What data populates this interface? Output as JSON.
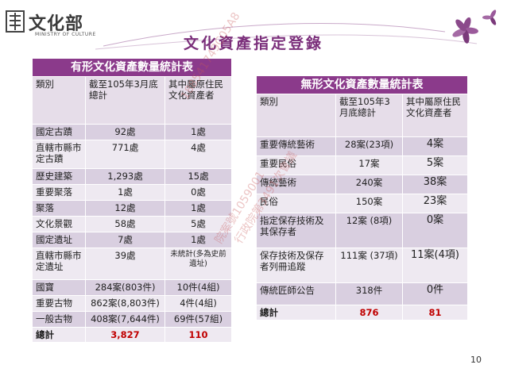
{
  "header": {
    "logo_text": "文化部",
    "logo_sub": "MINISTRY OF CULTURE",
    "page_title": "文化資產指定登錄"
  },
  "tangible": {
    "title": "有形文化資產數量統計表",
    "headers": [
      "類別",
      "截至105年3月底總計",
      "其中屬原住民文化資產者"
    ],
    "rows": [
      {
        "cat": "國定古蹟",
        "total": "92處",
        "indig": "1處"
      },
      {
        "cat": "直轄市縣市定古蹟",
        "total": "771處",
        "indig": "4處"
      },
      {
        "cat": "歷史建築",
        "total": "1,293處",
        "indig": "15處"
      },
      {
        "cat": "重要聚落",
        "total": "1處",
        "indig": "0處"
      },
      {
        "cat": "聚落",
        "total": "12處",
        "indig": "1處"
      },
      {
        "cat": "文化景觀",
        "total": "58處",
        "indig": "5處"
      },
      {
        "cat": "國定遺址",
        "total": "7處",
        "indig": "1處"
      },
      {
        "cat": "直轄市縣市定遺址",
        "total": "39處",
        "indig": "未統計(多為史前遺址)"
      },
      {
        "cat": "國寶",
        "total": "284案(803件)",
        "indig": "10件(4組)"
      },
      {
        "cat": "重要古物",
        "total": "862案(8,803件)",
        "indig": "4件(4組)"
      },
      {
        "cat": "一般古物",
        "total": "408案(7,644件)",
        "indig": "69件(57組)"
      }
    ],
    "total": {
      "cat": "總計",
      "total": "3,827",
      "indig": "110"
    }
  },
  "intangible": {
    "title": "無形文化資產數量統計表",
    "headers": [
      "類別",
      "截至105年3月底總計",
      "其中屬原住民文化資產者"
    ],
    "rows": [
      {
        "cat": "重要傳統藝術",
        "total": "28案(23項)",
        "indig": "4案"
      },
      {
        "cat": "重要民俗",
        "total": "17案",
        "indig": "5案"
      },
      {
        "cat": "傳統藝術",
        "total": "240案",
        "indig": "38案"
      },
      {
        "cat": "民俗",
        "total": "150案",
        "indig": "23案"
      },
      {
        "cat": "指定保存技術及其保存者",
        "total": "12案 (8項)",
        "indig": "0案"
      },
      {
        "cat": "保存技術及保存者列冊追蹤",
        "total": "111案 (37項)",
        "indig": "11案(4項)"
      },
      {
        "cat": "傳統匠師公告",
        "total": "318件",
        "indig": "0件"
      }
    ],
    "total": {
      "cat": "總計",
      "total": "876",
      "indig": "81"
    }
  },
  "watermark": {
    "line1": "188541749C05A8",
    "line2": "院案號1059001",
    "line3": "行政院第3491次會議"
  },
  "page_number": "10",
  "colors": {
    "title_purple": "#7b2f7b",
    "table_header": "#8b3a8b",
    "row_dark": "#d9cfe0",
    "row_light": "#eee9f1",
    "total_red": "#c00000"
  }
}
